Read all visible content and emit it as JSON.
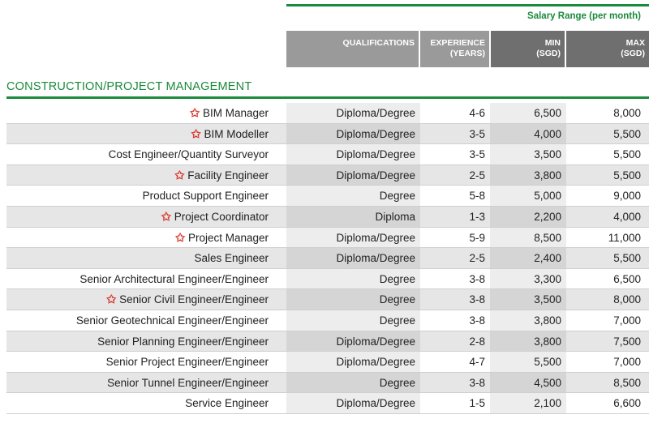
{
  "header": {
    "salary_range": "Salary Range (per month)",
    "qualifications": "QUALIFICATIONS",
    "experience": "EXPERIENCE\n(YEARS)",
    "min": "MIN\n(SGD)",
    "max": "MAX\n(SGD)"
  },
  "section": {
    "title": "CONSTRUCTION/PROJECT MANAGEMENT"
  },
  "star_icon": "star-icon",
  "colors": {
    "accent": "#1a8a3c",
    "star": "#d62b1f",
    "header_light": "#9a9a9a",
    "header_dark": "#6f6f6f"
  },
  "rows": [
    {
      "starred": true,
      "title": "BIM Manager",
      "qualification": "Diploma/Degree",
      "experience": "4-6",
      "min": "6,500",
      "max": "8,000"
    },
    {
      "starred": true,
      "title": "BIM Modeller",
      "qualification": "Diploma/Degree",
      "experience": "3-5",
      "min": "4,000",
      "max": "5,500"
    },
    {
      "starred": false,
      "title": "Cost Engineer/Quantity Surveyor",
      "qualification": "Diploma/Degree",
      "experience": "3-5",
      "min": "3,500",
      "max": "5,500"
    },
    {
      "starred": true,
      "title": "Facility Engineer",
      "qualification": "Diploma/Degree",
      "experience": "2-5",
      "min": "3,800",
      "max": "5,500"
    },
    {
      "starred": false,
      "title": "Product Support Engineer",
      "qualification": "Degree",
      "experience": "5-8",
      "min": "5,000",
      "max": "9,000"
    },
    {
      "starred": true,
      "title": "Project  Coordinator",
      "qualification": "Diploma",
      "experience": "1-3",
      "min": "2,200",
      "max": "4,000"
    },
    {
      "starred": true,
      "title": "Project Manager",
      "qualification": "Diploma/Degree",
      "experience": "5-9",
      "min": "8,500",
      "max": "11,000"
    },
    {
      "starred": false,
      "title": "Sales Engineer",
      "qualification": "Diploma/Degree",
      "experience": "2-5",
      "min": "2,400",
      "max": "5,500"
    },
    {
      "starred": false,
      "title": "Senior Architectural Engineer/Engineer",
      "qualification": "Degree",
      "experience": "3-8",
      "min": "3,300",
      "max": "6,500"
    },
    {
      "starred": true,
      "title": "Senior Civil Engineer/Engineer",
      "qualification": "Degree",
      "experience": "3-8",
      "min": "3,500",
      "max": "8,000"
    },
    {
      "starred": false,
      "title": "Senior Geotechnical Engineer/Engineer",
      "qualification": "Degree",
      "experience": "3-8",
      "min": "3,800",
      "max": "7,000"
    },
    {
      "starred": false,
      "title": "Senior Planning Engineer/Engineer",
      "qualification": "Diploma/Degree",
      "experience": "2-8",
      "min": "3,800",
      "max": "7,500"
    },
    {
      "starred": false,
      "title": "Senior Project Engineer/Engineer",
      "qualification": "Diploma/Degree",
      "experience": "4-7",
      "min": "5,500",
      "max": "7,000"
    },
    {
      "starred": false,
      "title": "Senior Tunnel Engineer/Engineer",
      "qualification": "Degree",
      "experience": "3-8",
      "min": "4,500",
      "max": "8,500"
    },
    {
      "starred": false,
      "title": "Service Engineer",
      "qualification": "Diploma/Degree",
      "experience": "1-5",
      "min": "2,100",
      "max": "6,600"
    }
  ]
}
